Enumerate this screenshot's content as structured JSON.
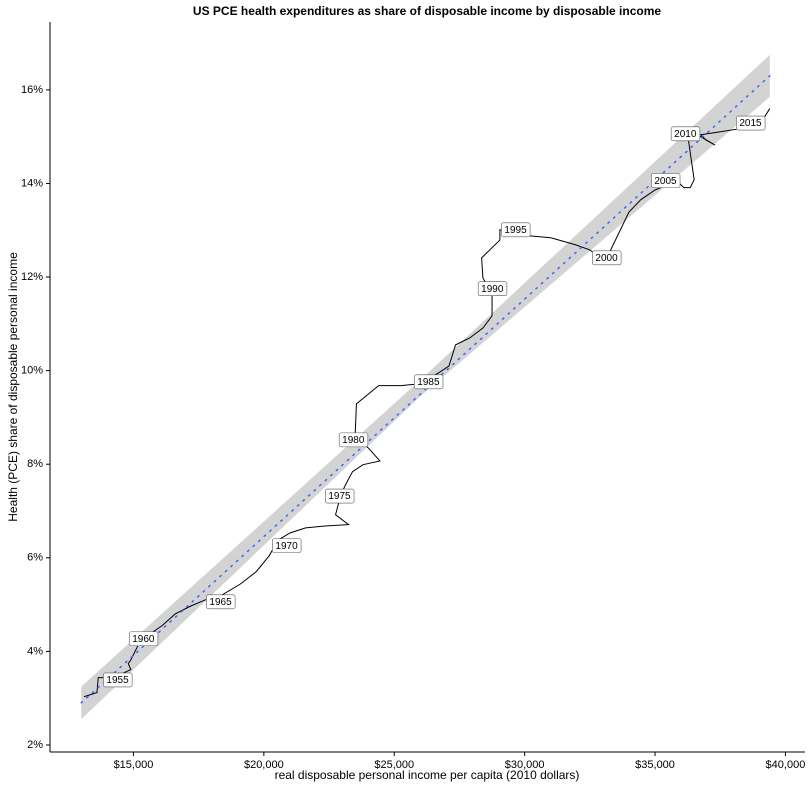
{
  "chart_data": {
    "type": "line",
    "title": "US PCE health expenditures as share of disposable income by disposable income",
    "x_label": "real disposable personal income per capita (2010 dollars)",
    "y_label": "Health (PCE) share of disposable personal income",
    "xlim": [
      11800,
      40750
    ],
    "ylim": [
      1.85,
      17.45
    ],
    "xticks": [
      {
        "value": 15000,
        "label": "$15,000"
      },
      {
        "value": 20000,
        "label": "$20,000"
      },
      {
        "value": 25000,
        "label": "$25,000"
      },
      {
        "value": 30000,
        "label": "$30,000"
      },
      {
        "value": 35000,
        "label": "$35,000"
      },
      {
        "value": 40000,
        "label": "$40,000"
      }
    ],
    "yticks": [
      {
        "value": 2,
        "label": "2%"
      },
      {
        "value": 4,
        "label": "4%"
      },
      {
        "value": 6,
        "label": "6%"
      },
      {
        "value": 8,
        "label": "8%"
      },
      {
        "value": 10,
        "label": "10%"
      },
      {
        "value": 12,
        "label": "12%"
      },
      {
        "value": 14,
        "label": "14%"
      },
      {
        "value": 16,
        "label": "16%"
      }
    ],
    "grid": false,
    "series": [
      {
        "color": "#000000",
        "x": [
          13100,
          13600,
          13650,
          14050,
          14250,
          14700,
          14900,
          14800,
          14900,
          15250,
          15650,
          16100,
          16400,
          16600,
          17200,
          17750,
          18350,
          19100,
          19700,
          20200,
          20550,
          21000,
          21600,
          22350,
          23250,
          22750,
          22950,
          23150,
          23400,
          23800,
          24450,
          24000,
          23500,
          23550,
          24400,
          25250,
          26000,
          26750,
          27100,
          27350,
          27900,
          28400,
          28750,
          28750,
          28400,
          28350,
          29050,
          29050,
          30200,
          31000,
          31950,
          32500,
          32900,
          33300,
          33300,
          34000,
          34450,
          35000,
          35300,
          35500,
          35600,
          35800,
          36100,
          36350,
          36500,
          36250,
          36750,
          37300,
          36950,
          36750,
          37450,
          38250,
          39050,
          39400
        ],
        "values": [
          3.03,
          3.12,
          3.44,
          3.44,
          3.46,
          3.56,
          3.61,
          3.74,
          3.82,
          4.21,
          4.38,
          4.55,
          4.7,
          4.8,
          4.97,
          5.1,
          5.19,
          5.44,
          5.7,
          6.04,
          6.38,
          6.53,
          6.64,
          6.68,
          6.71,
          6.92,
          7.35,
          7.58,
          7.84,
          7.99,
          8.07,
          8.35,
          8.61,
          9.29,
          9.68,
          9.68,
          9.72,
          9.97,
          10.1,
          10.55,
          10.7,
          10.91,
          11.17,
          11.64,
          11.98,
          12.41,
          12.79,
          13.01,
          12.88,
          12.84,
          12.69,
          12.58,
          12.41,
          12.37,
          12.58,
          13.39,
          13.65,
          13.86,
          13.93,
          14.08,
          14.12,
          14.08,
          13.91,
          13.91,
          14.08,
          15.04,
          15.0,
          14.82,
          14.93,
          15.04,
          15.1,
          15.17,
          15.29,
          15.6
        ]
      }
    ],
    "trend": {
      "color": "#3366ff",
      "x": [
        13000,
        39400
      ],
      "y": [
        2.9,
        16.3
      ]
    },
    "band": {
      "color": "#d3d3d3",
      "x": [
        13000,
        26000,
        39400
      ],
      "lower": [
        2.55,
        9.45,
        15.85
      ],
      "upper": [
        3.25,
        9.8,
        16.75
      ]
    },
    "annotations": [
      {
        "label": "1955",
        "x": 14390,
        "y": 3.39
      },
      {
        "label": "1960",
        "x": 15380,
        "y": 4.27
      },
      {
        "label": "1965",
        "x": 18340,
        "y": 5.06
      },
      {
        "label": "1970",
        "x": 20870,
        "y": 6.26
      },
      {
        "label": "1975",
        "x": 22900,
        "y": 7.32
      },
      {
        "label": "1980",
        "x": 23430,
        "y": 8.52
      },
      {
        "label": "1985",
        "x": 26310,
        "y": 9.76
      },
      {
        "label": "1990",
        "x": 28760,
        "y": 11.75
      },
      {
        "label": "1995",
        "x": 29650,
        "y": 13.01
      },
      {
        "label": "2000",
        "x": 33140,
        "y": 12.41
      },
      {
        "label": "2005",
        "x": 35400,
        "y": 14.06
      },
      {
        "label": "2010",
        "x": 36160,
        "y": 15.06
      },
      {
        "label": "2015",
        "x": 38660,
        "y": 15.29
      }
    ]
  }
}
